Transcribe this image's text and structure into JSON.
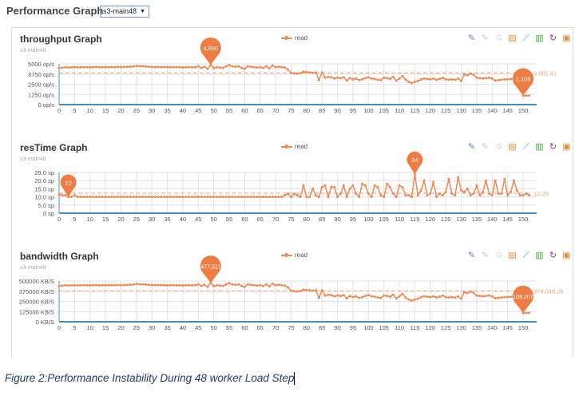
{
  "header": {
    "title": "Performance Graph",
    "selected_host": "s3-main48"
  },
  "caption": "Figure 2:Performance Instability During 48 worker Load Step",
  "toolbar_icons": [
    "mark-line-icon",
    "erase-mark-icon",
    "clear-icon",
    "data-view-icon",
    "line-chart-icon",
    "bar-chart-icon",
    "restore-icon",
    "save-image-icon"
  ],
  "colors": {
    "series": "#f08a55",
    "pin": "#ef7c42",
    "markline": "#f0a27c",
    "axis": "#4a8fc4",
    "grid": "#e3e3e3"
  },
  "chart_data": [
    {
      "type": "line",
      "title": "throughput Graph",
      "subtitle": "s3-main48",
      "legend": [
        "read"
      ],
      "legend_position": "top-center",
      "yticks": [
        "0 op/s",
        "1250 op/s",
        "2500 op/s",
        "3750 op/s",
        "5000 op/s"
      ],
      "ylim": [
        0,
        5000
      ],
      "x_ticks_step": 5,
      "xlim": [
        0,
        152
      ],
      "max_label": "4,890",
      "max_x": 49,
      "min_label": "1,108",
      "min_x": 150,
      "avg_label": "3,881.41",
      "avg": 3881.41,
      "series": [
        {
          "name": "read",
          "values": [
            4500,
            4550,
            4600,
            4550,
            4580,
            4600,
            4570,
            4580,
            4600,
            4590,
            4580,
            4600,
            4620,
            4580,
            4590,
            4600,
            4600,
            4610,
            4600,
            4620,
            4600,
            4620,
            4630,
            4650,
            4680,
            4750,
            4720,
            4700,
            4680,
            4650,
            4620,
            4600,
            4620,
            4600,
            4610,
            4580,
            4600,
            4590,
            4580,
            4600,
            4560,
            4580,
            4600,
            4570,
            4590,
            4700,
            4500,
            4650,
            4400,
            4890,
            4500,
            4600,
            4550,
            4500,
            4700,
            4850,
            4700,
            4650,
            4700,
            4500,
            4400,
            4700,
            4650,
            4600,
            4550,
            4600,
            4500,
            4700,
            4450,
            4800,
            4600,
            4650,
            4600,
            4550,
            4300,
            3900,
            3850,
            3800,
            3850,
            4050,
            4000,
            3950,
            3900,
            3950,
            3000,
            3950,
            3300,
            3400,
            3350,
            3200,
            3300,
            3250,
            3350,
            2950,
            3250,
            3100,
            3200,
            3000,
            3100,
            3250,
            3350,
            3200,
            3150,
            3050,
            3000,
            3300,
            3250,
            3150,
            3400,
            2950,
            3200,
            3500,
            3050,
            2800,
            2650,
            2800,
            2900,
            3100,
            3200,
            3150,
            3100,
            3200,
            3050,
            3150,
            3300,
            3100,
            3050,
            3100,
            3050,
            3200,
            2900,
            3700,
            3600,
            3800,
            3650,
            3300,
            3250,
            3200,
            3250,
            3300,
            3200,
            2950,
            3000,
            3050,
            3100,
            3100,
            3150,
            3150,
            3200,
            3300,
            1108,
            1108,
            1108
          ]
        }
      ]
    },
    {
      "type": "line",
      "title": "resTime Graph",
      "subtitle": "s3-main48",
      "legend": [
        "read"
      ],
      "legend_position": "top-center",
      "yticks": [
        "0 sp",
        "5.0 sp",
        "10.0 sp",
        "15.0 sp",
        "20.0 sp",
        "25.0 sp"
      ],
      "ylim": [
        0,
        25
      ],
      "x_ticks_step": 5,
      "xlim": [
        0,
        152
      ],
      "max_label": "24",
      "max_x": 115,
      "min_label": "10",
      "min_x": 3,
      "avg_label": "12.26",
      "avg": 12.26,
      "series": [
        {
          "name": "read",
          "values": [
            11.5,
            11,
            11,
            10,
            10,
            11,
            10,
            10,
            10,
            10,
            10,
            10,
            10,
            10,
            10,
            10,
            10,
            10,
            10,
            10,
            10,
            10,
            10,
            10,
            10,
            10,
            10,
            10,
            10,
            10,
            10,
            10,
            10,
            10,
            10,
            10,
            10,
            10,
            10,
            10,
            10,
            10,
            10,
            10,
            10,
            10,
            10,
            10,
            10,
            10,
            10,
            10,
            10,
            10,
            10,
            10,
            10,
            10,
            10,
            10,
            10,
            10,
            10,
            10,
            10,
            10,
            10,
            10,
            10,
            10,
            10,
            10,
            10,
            11,
            12,
            10,
            12,
            11,
            10,
            17,
            10,
            10,
            15,
            11,
            10,
            16,
            17,
            10,
            16,
            16,
            10,
            12,
            17,
            10,
            15,
            17,
            12,
            10,
            18,
            17,
            12,
            10,
            17,
            16,
            11,
            10,
            18,
            16,
            12,
            10,
            17,
            16,
            11,
            11,
            10,
            24,
            11,
            14,
            20,
            11,
            12,
            19,
            10,
            12,
            11,
            13,
            21,
            12,
            11,
            22,
            14,
            13,
            15,
            11,
            12,
            17,
            11,
            13,
            20,
            12,
            11,
            20,
            12,
            12,
            21,
            11,
            13,
            20,
            14,
            11,
            11,
            12,
            11
          ]
        }
      ]
    },
    {
      "type": "line",
      "title": "bandwidth Graph",
      "subtitle": "s3-main48",
      "legend": [
        "read"
      ],
      "legend_position": "top-center",
      "yticks": [
        "0 KB/S",
        "125000 KB/S",
        "250000 KB/S",
        "375000 KB/S",
        "500000 KB/S"
      ],
      "ylim": [
        0,
        500000
      ],
      "x_ticks_step": 5,
      "xlim": [
        0,
        152
      ],
      "max_label": "477,511",
      "max_x": 49,
      "min_label": "108,207",
      "min_x": 150,
      "avg_label": "379,048.26",
      "avg": 379048.26,
      "series": [
        {
          "name": "read",
          "values": [
            439000,
            444000,
            449000,
            444000,
            447000,
            449000,
            446000,
            447000,
            449000,
            448000,
            447000,
            449000,
            451000,
            447000,
            448000,
            449000,
            449000,
            450000,
            449000,
            451000,
            449000,
            451000,
            452000,
            454000,
            457000,
            464000,
            461000,
            459000,
            457000,
            454000,
            451000,
            449000,
            451000,
            449000,
            450000,
            447000,
            449000,
            448000,
            447000,
            449000,
            445000,
            447000,
            449000,
            446000,
            448000,
            459000,
            439000,
            454000,
            429000,
            477511,
            439000,
            449000,
            444000,
            439000,
            459000,
            473000,
            459000,
            454000,
            459000,
            439000,
            429000,
            459000,
            454000,
            449000,
            444000,
            449000,
            439000,
            459000,
            434000,
            468000,
            449000,
            454000,
            449000,
            444000,
            420000,
            381000,
            376000,
            371000,
            376000,
            395000,
            390000,
            386000,
            381000,
            386000,
            293000,
            386000,
            322000,
            332000,
            327000,
            312000,
            322000,
            317000,
            327000,
            288000,
            317000,
            303000,
            312000,
            293000,
            303000,
            317000,
            327000,
            312000,
            307000,
            298000,
            293000,
            322000,
            317000,
            307000,
            332000,
            288000,
            312000,
            342000,
            298000,
            273000,
            259000,
            273000,
            283000,
            303000,
            312000,
            307000,
            303000,
            312000,
            298000,
            307000,
            322000,
            303000,
            298000,
            303000,
            298000,
            312000,
            283000,
            361000,
            351000,
            371000,
            356000,
            322000,
            317000,
            312000,
            317000,
            322000,
            312000,
            288000,
            293000,
            298000,
            303000,
            303000,
            307000,
            307000,
            312000,
            322000,
            108207,
            108207,
            108207
          ]
        }
      ]
    }
  ]
}
